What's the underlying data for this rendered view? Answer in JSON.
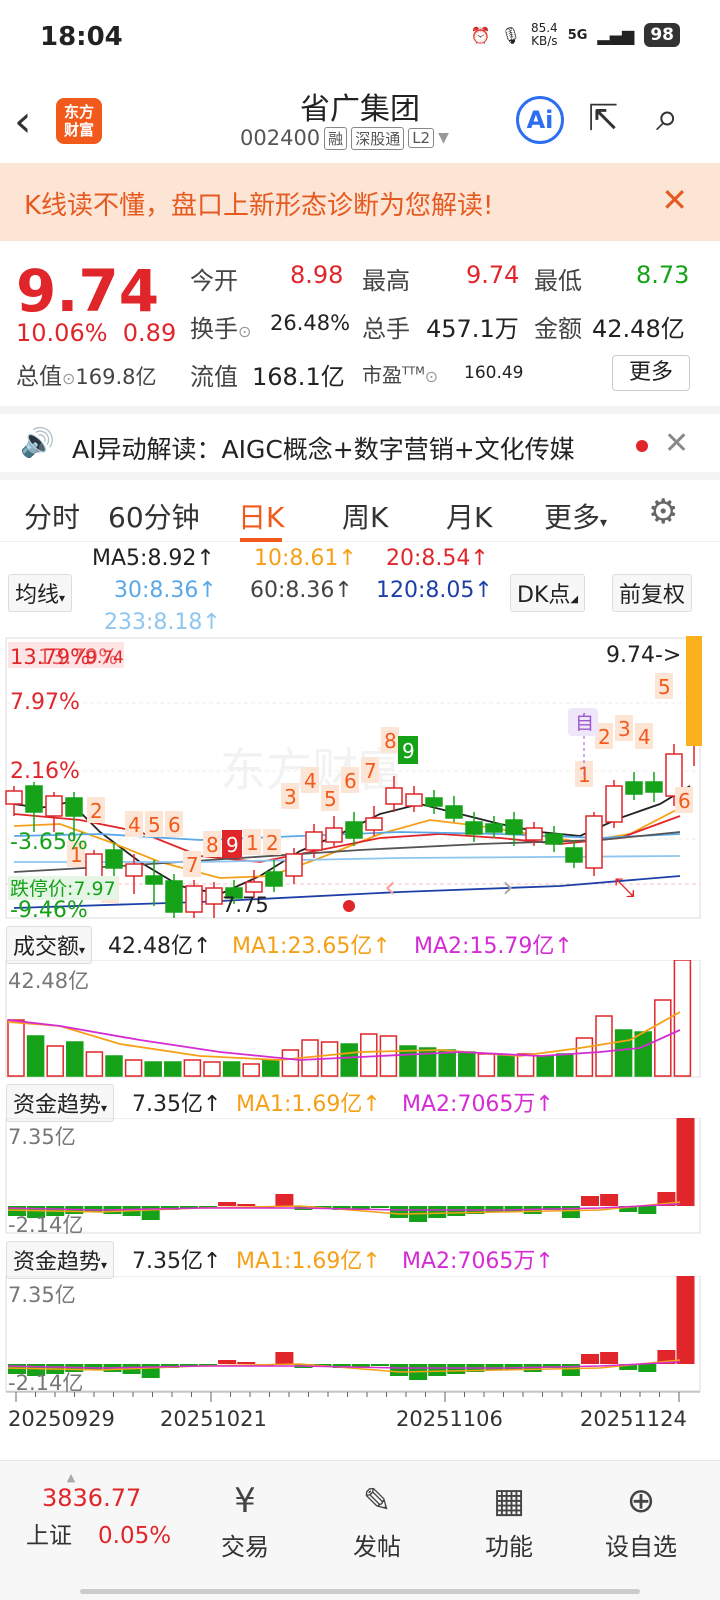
{
  "status_bar": {
    "time": "18:04",
    "net_speed": "85.4",
    "net_unit": "KB/s",
    "signal": "5G",
    "battery": "98"
  },
  "header": {
    "title": "省广集团",
    "code": "002400",
    "tags": [
      "融",
      "深股通",
      "L2"
    ],
    "logo_line1": "东方",
    "logo_line2": "财富",
    "ai_label": "Ai"
  },
  "banner": {
    "text": "K线读不懂，盘口上新形态诊断为您解读!"
  },
  "quote": {
    "price": "9.74",
    "change_pct": "10.06%",
    "change": "0.89",
    "open_label": "今开",
    "open": "8.98",
    "high_label": "最高",
    "high": "9.74",
    "low_label": "最低",
    "low": "8.73",
    "turnover_label": "换手",
    "turnover": "26.48%",
    "volume_label": "总手",
    "volume": "457.1万",
    "amount_label": "金额",
    "amount": "42.48亿",
    "mcap_label": "总值",
    "mcap": "169.8亿",
    "float_label": "流值",
    "float": "168.1亿",
    "pe_label": "市盈",
    "pe_sup": "TTM",
    "pe": "160.49",
    "more_label": "更多"
  },
  "ai_row": {
    "text": "AI异动解读：AIGC概念+数字营销+文化传媒"
  },
  "tabs": [
    "分时",
    "60分钟",
    "日K",
    "周K",
    "月K",
    "更多"
  ],
  "active_tab": "日K",
  "ma_legend": {
    "selector": "均线",
    "ma5": "MA5:8.92↑",
    "ma10": "10:8.61↑",
    "ma20": "20:8.54↑",
    "ma30": "30:8.36↑",
    "ma60": "60:8.36↑",
    "ma120": "120:8.05↑",
    "ma233": "233:8.18↑",
    "dk": "DK点",
    "adjust": "前复权"
  },
  "kline": {
    "top_pct": "13.79%",
    "pct1": "7.97%",
    "pct2": "2.16%",
    "pct3": "-3.65%",
    "pct4": "-9.46%",
    "top_overlay": "13.79%",
    "top_price_label": "9.74",
    "last_price_label": "9.74->",
    "low_label": "7.75",
    "stop_label": "跌停价:7.97",
    "self_label": "自",
    "watermark": "东方财富"
  },
  "volume_panel": {
    "selector": "成交额",
    "value": "42.48亿↑",
    "ma1": "MA1:23.65亿↑",
    "ma2": "MA2:15.79亿↑",
    "axis_top": "42.48亿"
  },
  "fund_panel_1": {
    "selector": "资金趋势",
    "value": "7.35亿↑",
    "ma1": "MA1:1.69亿↑",
    "ma2": "MA2:7065万↑",
    "axis_top": "7.35亿",
    "axis_bottom": "-2.14亿"
  },
  "fund_panel_2": {
    "selector": "资金趋势",
    "value": "7.35亿↑",
    "ma1": "MA1:1.69亿↑",
    "ma2": "MA2:7065万↑",
    "axis_top": "7.35亿",
    "axis_bottom": "-2.14亿"
  },
  "x_axis": [
    "20250929",
    "20251021",
    "20251106",
    "20251124"
  ],
  "bottom_nav": {
    "index_value": "3836.77",
    "index_name": "上证",
    "index_change": "0.05%",
    "items": [
      {
        "icon": "trade-icon",
        "label": "交易"
      },
      {
        "icon": "post-icon",
        "label": "发帖"
      },
      {
        "icon": "function-icon",
        "label": "功能"
      },
      {
        "icon": "watchlist-icon",
        "label": "设自选"
      }
    ]
  },
  "colors": {
    "up": "#e0262a",
    "down": "#16a218",
    "accent": "#f25a1c"
  }
}
